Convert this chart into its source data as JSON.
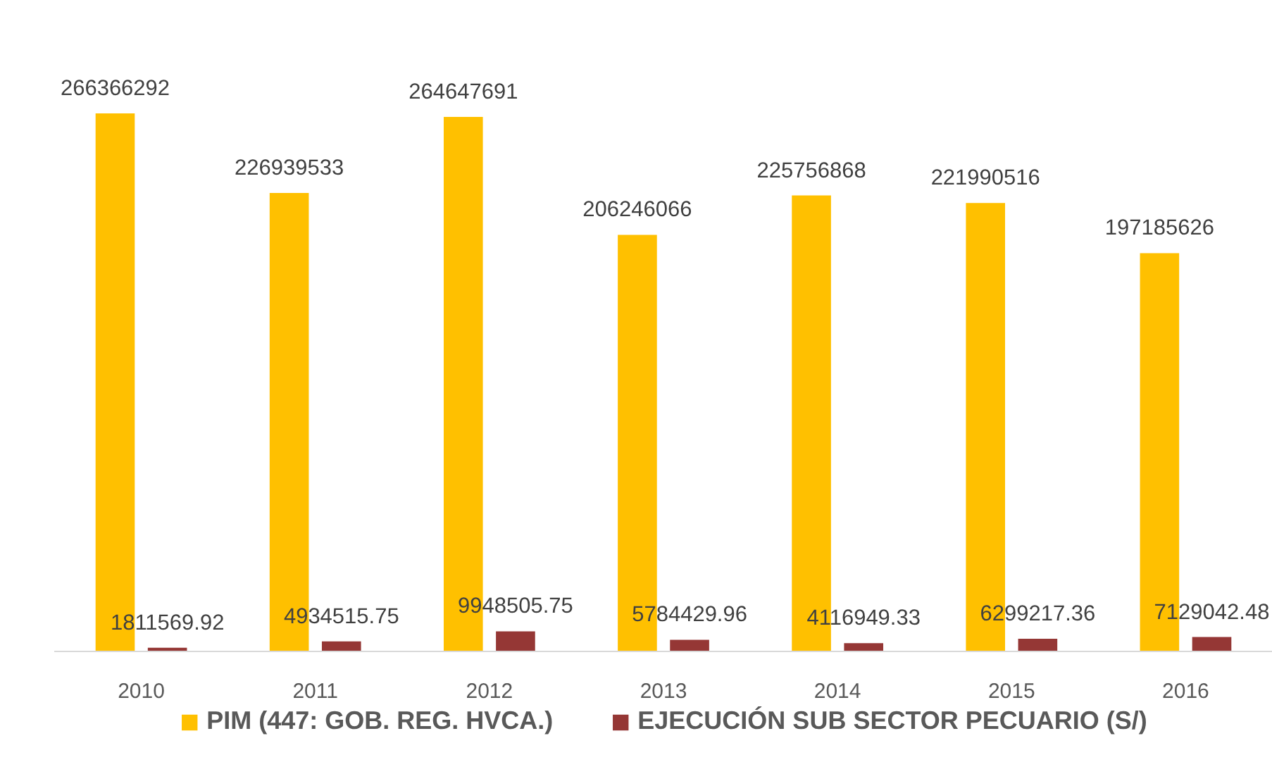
{
  "chart_data": {
    "type": "bar",
    "categories": [
      "2010",
      "2011",
      "2012",
      "2013",
      "2014",
      "2015",
      "2016"
    ],
    "series": [
      {
        "name": "PIM (447: GOB. REG. HVCA.)",
        "color": "#ffc000",
        "values": [
          266366292,
          226939533,
          264647691,
          206246066,
          225756868,
          221990516,
          197185626
        ]
      },
      {
        "name": "EJECUCIÓN SUB SECTOR PECUARIO (S/)",
        "color": "#953735",
        "values": [
          1811569.92,
          4934515.75,
          9948505.75,
          5784429.96,
          4116949.33,
          6299217.36,
          7129042.48
        ]
      }
    ],
    "data_labels": true,
    "tick_labels": "x",
    "legend": "bottom"
  }
}
